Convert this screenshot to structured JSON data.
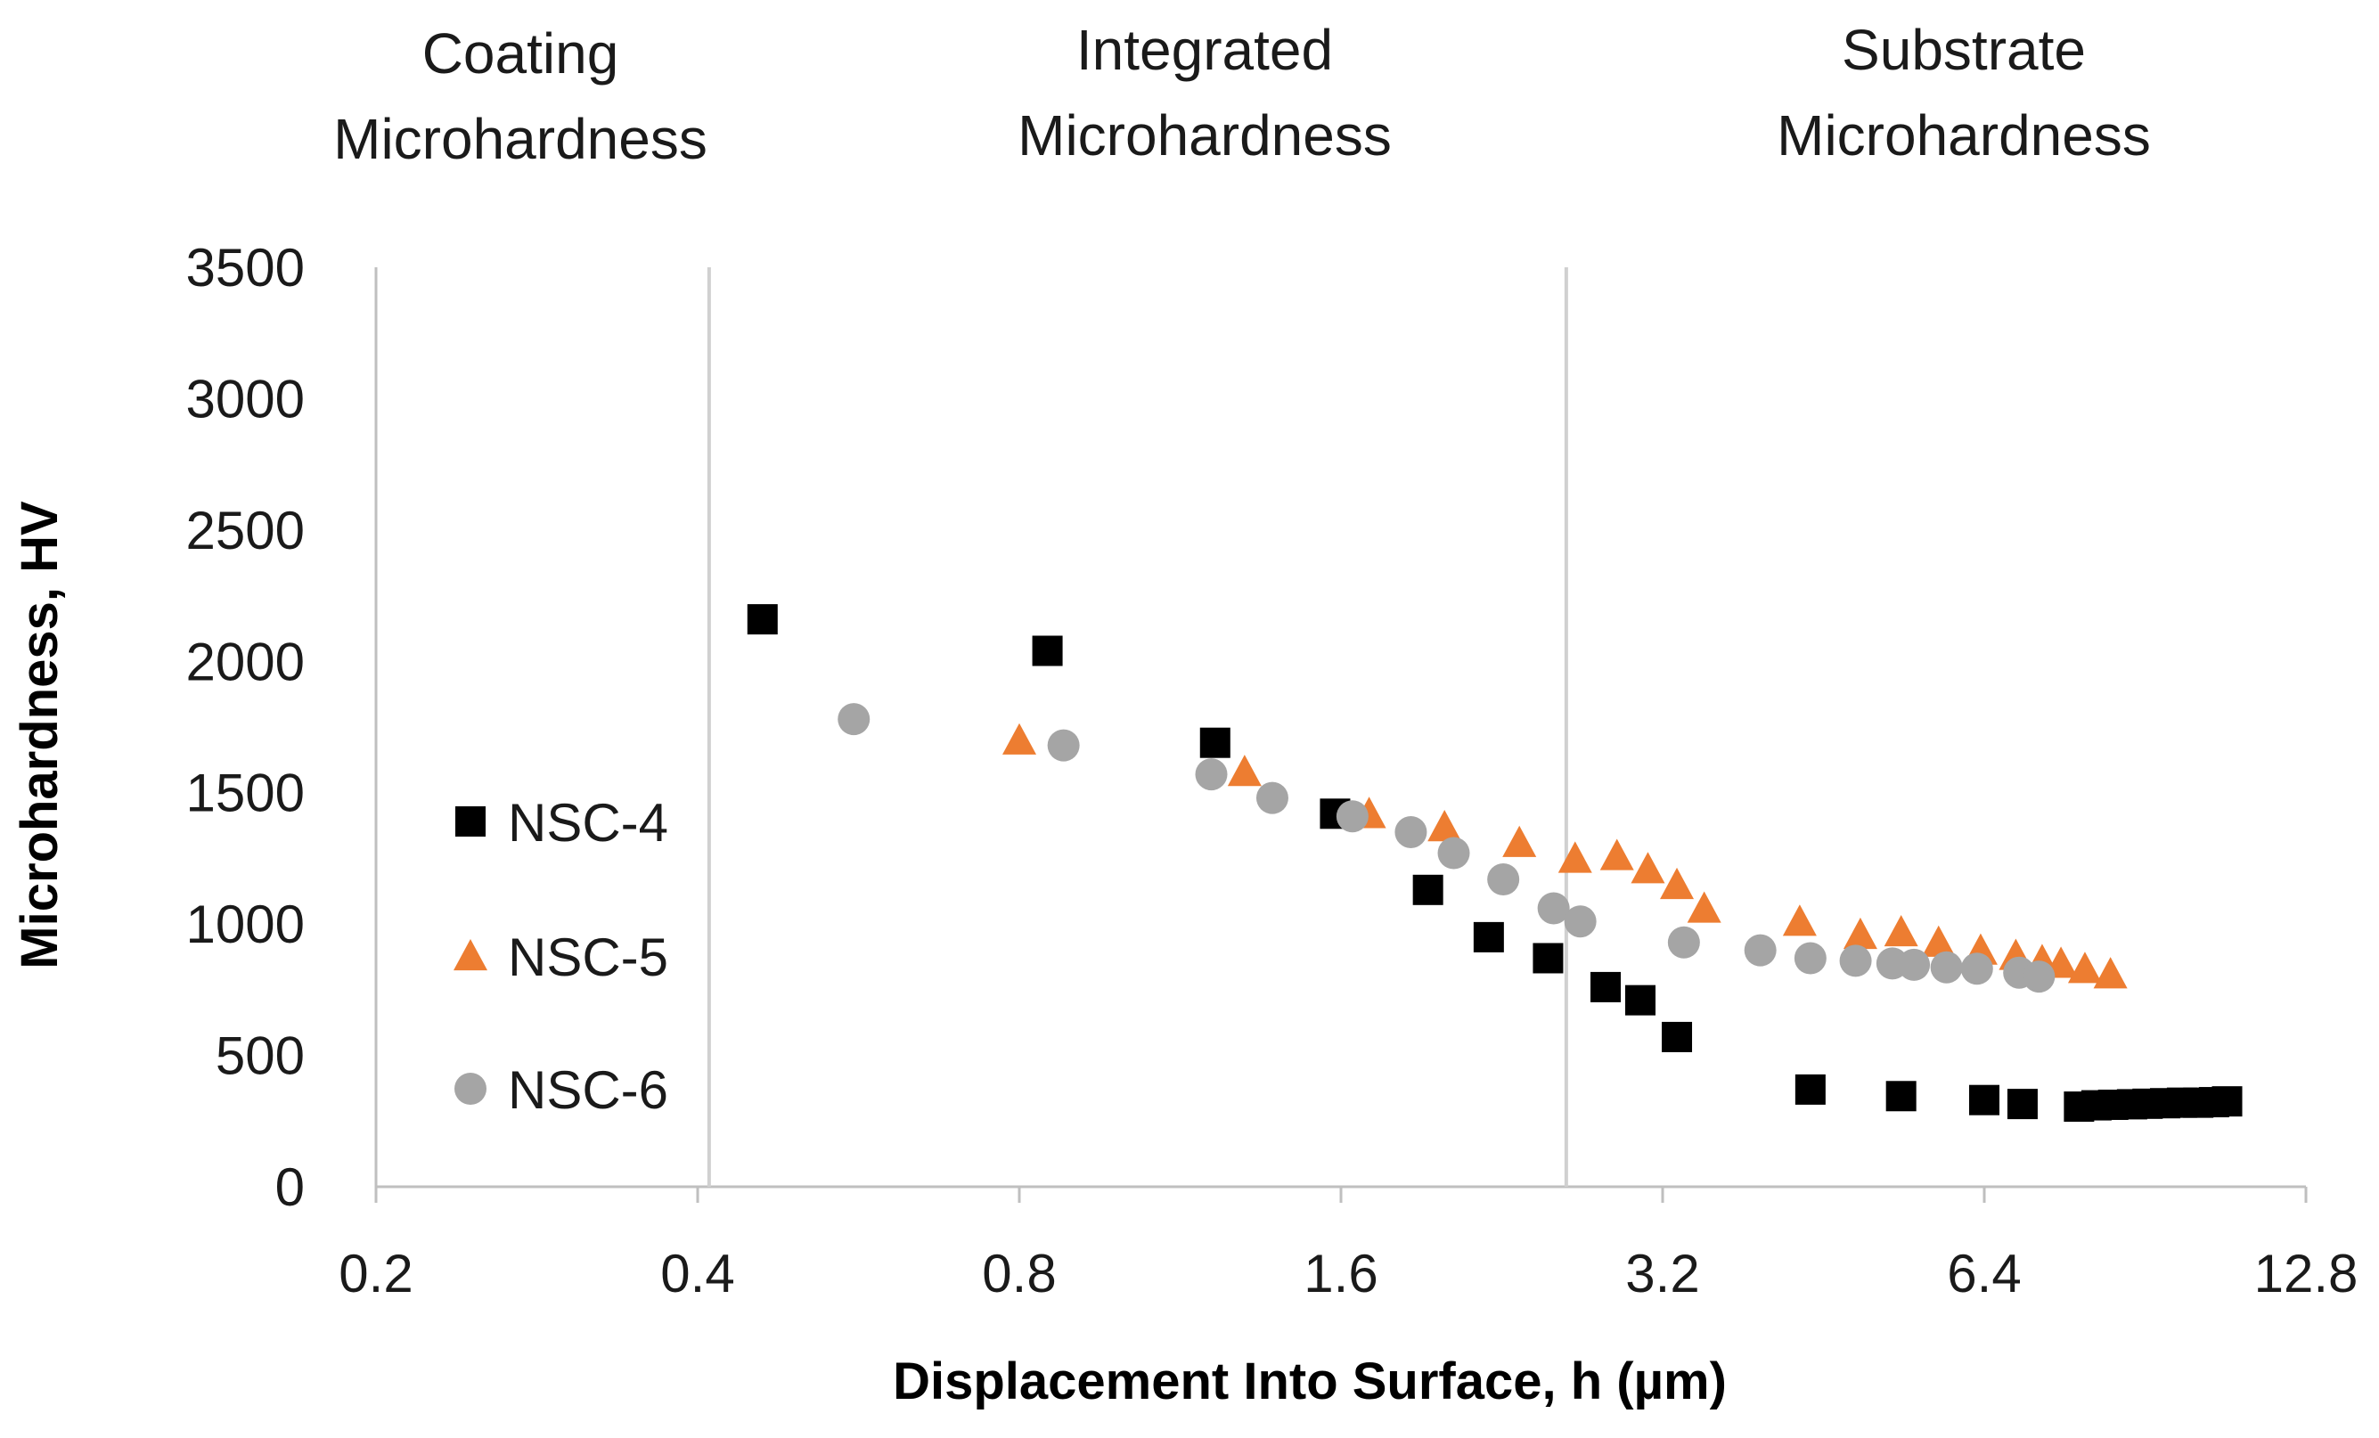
{
  "chart_data": {
    "type": "scatter",
    "title": "",
    "xlabel": "Displacement Into Surface, h (µm)",
    "ylabel": "Microhardness, HV",
    "x_scale": "log2",
    "xlim": [
      0.2,
      12.8
    ],
    "ylim": [
      0,
      3500
    ],
    "x_ticks": [
      "0.2",
      "0.4",
      "0.8",
      "1.6",
      "3.2",
      "6.4",
      "12.8"
    ],
    "y_ticks": [
      "0",
      "500",
      "1000",
      "1500",
      "2000",
      "2500",
      "3000",
      "3500"
    ],
    "grid": false,
    "legend_position": "left",
    "region_boundaries": [
      0.41,
      2.6
    ],
    "region_labels": [
      {
        "line1": "Coating",
        "line2": "Microhardness"
      },
      {
        "line1": "Integrated",
        "line2": "Microhardness"
      },
      {
        "line1": "Substrate",
        "line2": "Microhardness"
      }
    ],
    "colors": {
      "NSC-4": "#000000",
      "NSC-5": "#ED7D31",
      "NSC-6": "#A5A5A5",
      "divider": "#D0D0D0",
      "axis": "#BFBFBF"
    },
    "series": [
      {
        "name": "NSC-4",
        "marker": "square",
        "points": [
          [
            0.46,
            2160
          ],
          [
            0.85,
            2040
          ],
          [
            1.22,
            1690
          ],
          [
            1.58,
            1420
          ],
          [
            1.93,
            1130
          ],
          [
            2.2,
            950
          ],
          [
            2.5,
            870
          ],
          [
            2.83,
            760
          ],
          [
            3.05,
            710
          ],
          [
            3.3,
            570
          ],
          [
            4.4,
            370
          ],
          [
            5.35,
            345
          ],
          [
            6.4,
            330
          ],
          [
            6.95,
            315
          ],
          [
            7.85,
            305
          ],
          [
            8.15,
            310
          ],
          [
            8.45,
            312
          ],
          [
            8.8,
            314
          ],
          [
            9.1,
            316
          ],
          [
            9.45,
            318
          ],
          [
            9.8,
            320
          ],
          [
            10.15,
            320
          ],
          [
            10.5,
            322
          ],
          [
            10.8,
            325
          ]
        ]
      },
      {
        "name": "NSC-5",
        "marker": "triangle",
        "points": [
          [
            0.8,
            1700
          ],
          [
            1.3,
            1580
          ],
          [
            1.7,
            1420
          ],
          [
            2.0,
            1370
          ],
          [
            2.35,
            1310
          ],
          [
            2.65,
            1250
          ],
          [
            2.9,
            1260
          ],
          [
            3.1,
            1210
          ],
          [
            3.3,
            1150
          ],
          [
            3.5,
            1060
          ],
          [
            4.3,
            1010
          ],
          [
            4.9,
            960
          ],
          [
            5.35,
            970
          ],
          [
            5.8,
            930
          ],
          [
            6.35,
            900
          ],
          [
            6.85,
            880
          ],
          [
            7.25,
            860
          ],
          [
            7.55,
            850
          ],
          [
            7.95,
            830
          ],
          [
            8.4,
            810
          ]
        ]
      },
      {
        "name": "NSC-6",
        "marker": "circle",
        "points": [
          [
            0.56,
            1780
          ],
          [
            0.88,
            1680
          ],
          [
            1.21,
            1570
          ],
          [
            1.38,
            1480
          ],
          [
            1.64,
            1410
          ],
          [
            1.86,
            1350
          ],
          [
            2.04,
            1270
          ],
          [
            2.27,
            1170
          ],
          [
            2.53,
            1060
          ],
          [
            2.68,
            1010
          ],
          [
            3.35,
            930
          ],
          [
            3.95,
            900
          ],
          [
            4.4,
            870
          ],
          [
            4.85,
            860
          ],
          [
            5.25,
            850
          ],
          [
            5.5,
            845
          ],
          [
            5.9,
            835
          ],
          [
            6.3,
            830
          ],
          [
            6.9,
            815
          ],
          [
            7.2,
            800
          ]
        ]
      }
    ]
  }
}
